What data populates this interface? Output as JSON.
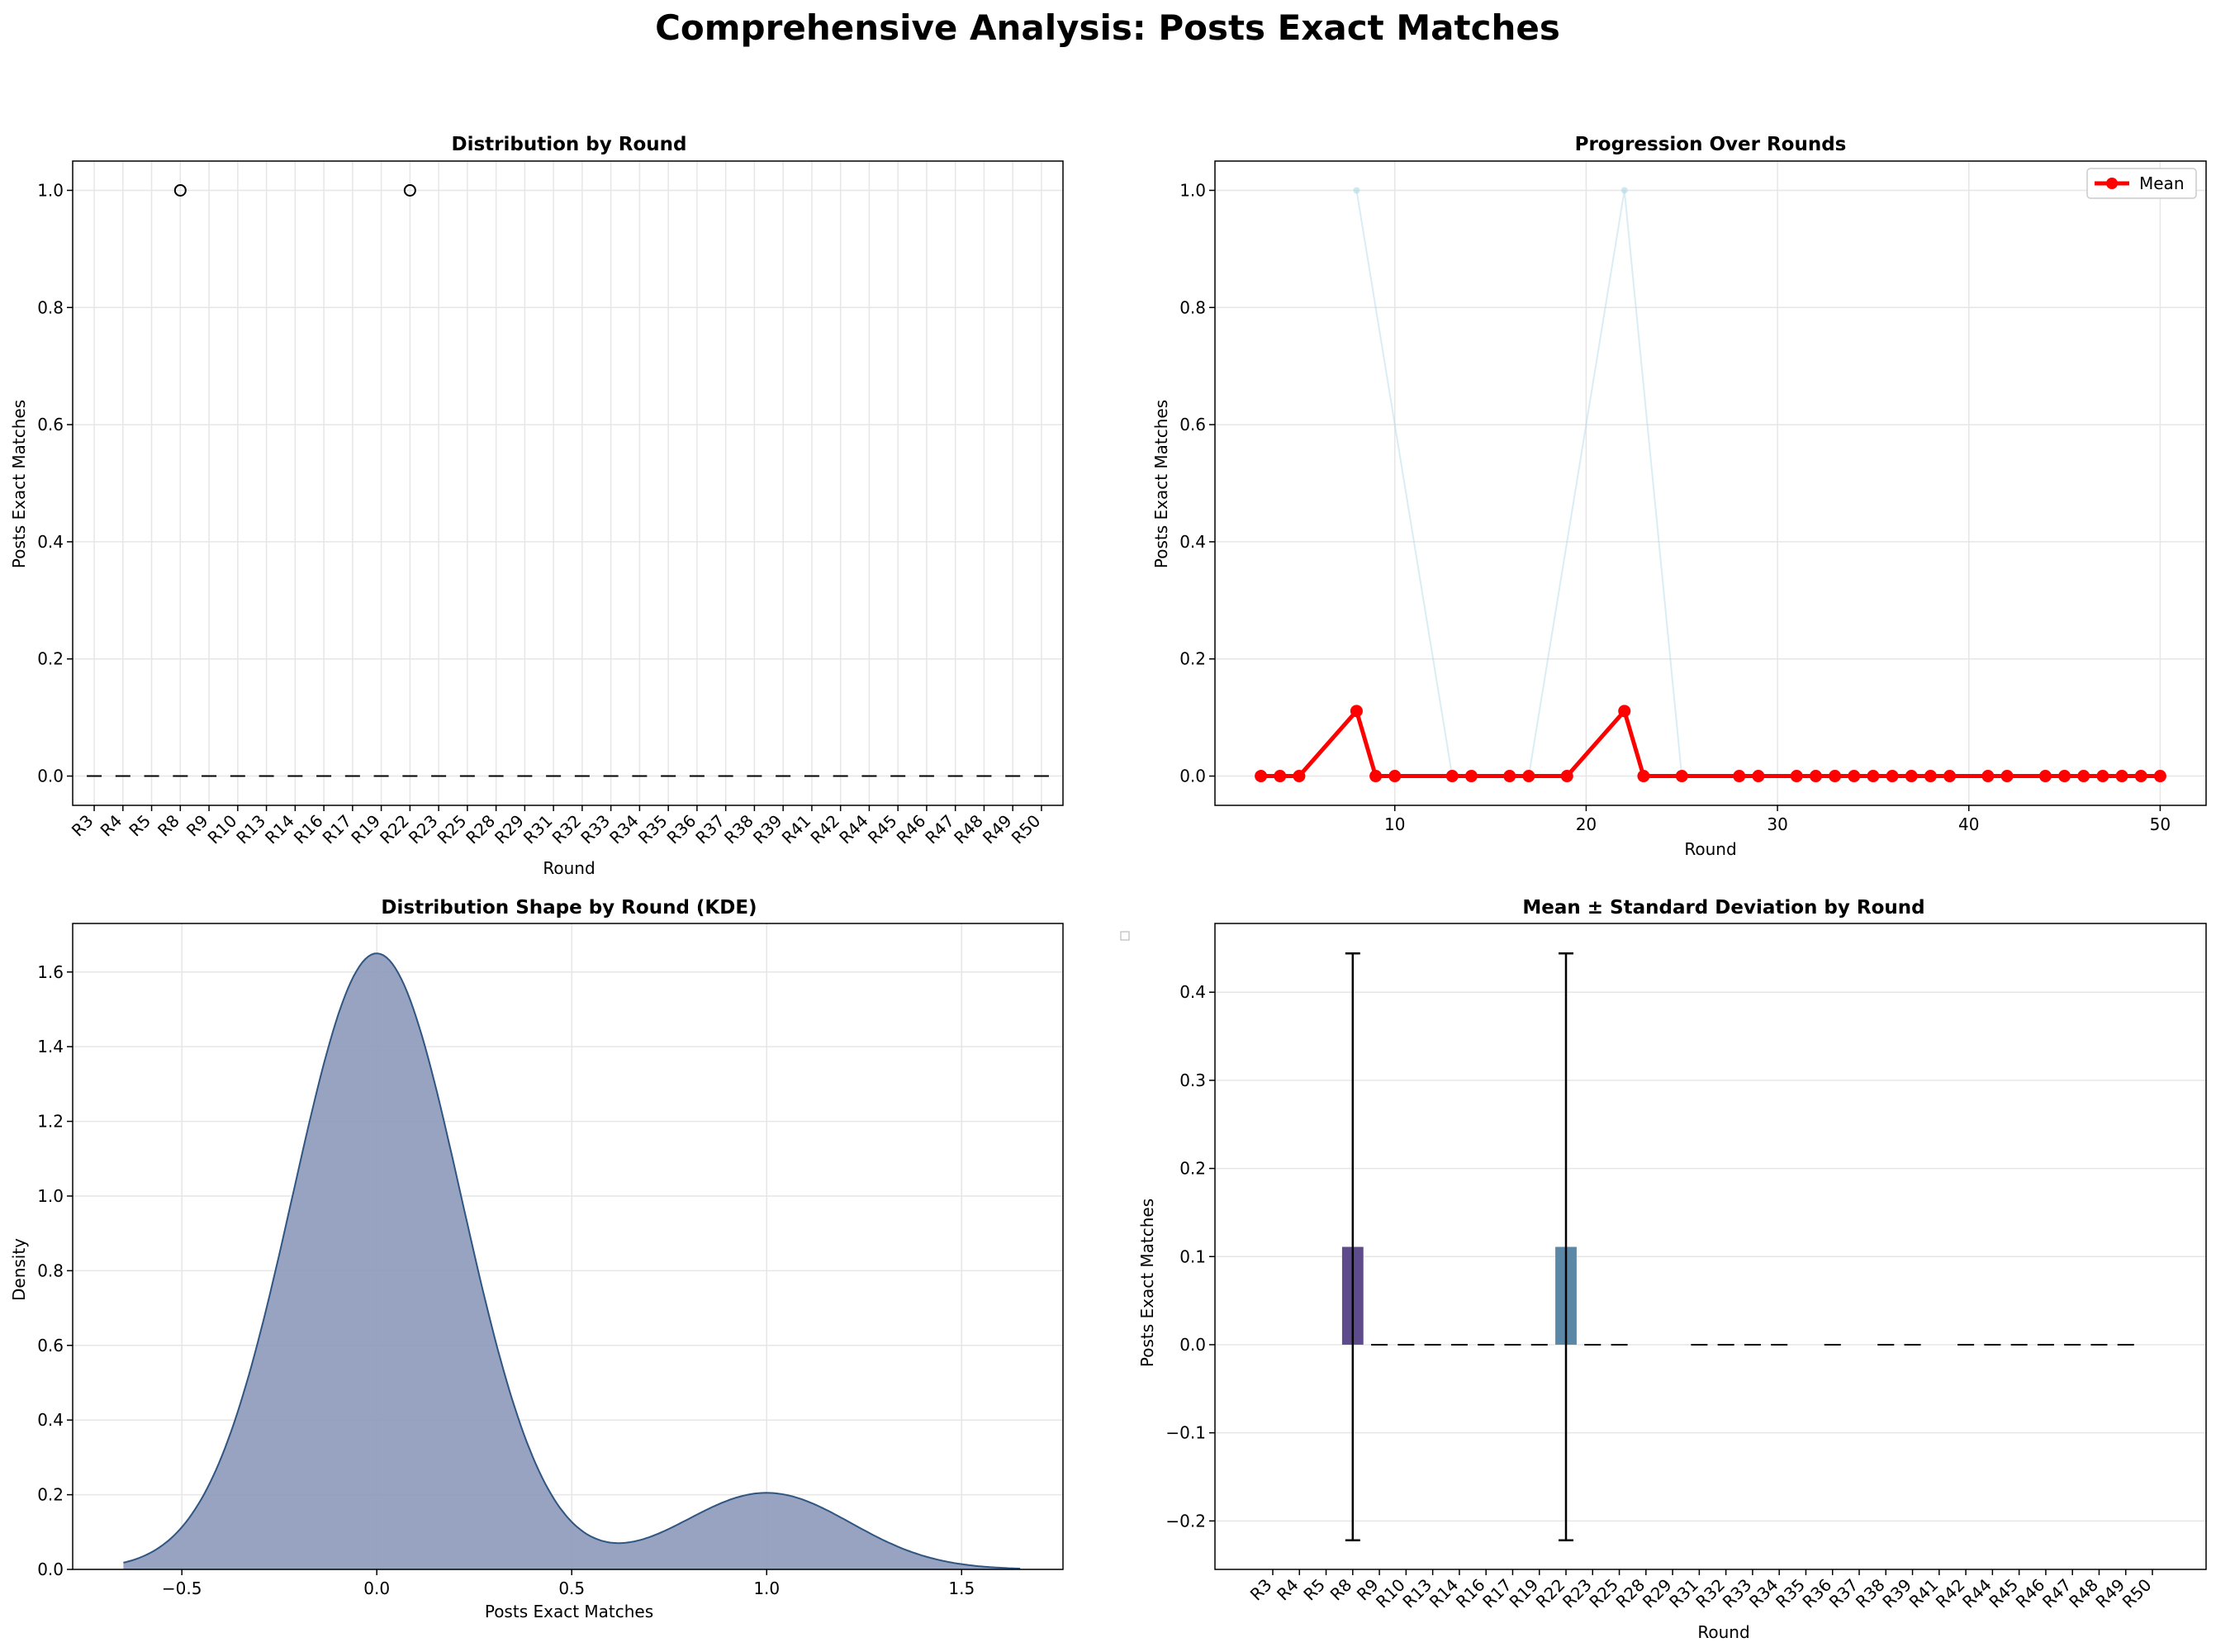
{
  "figure": {
    "title": "Comprehensive Analysis: Posts Exact Matches"
  },
  "rounds": [
    "R3",
    "R4",
    "R5",
    "R8",
    "R9",
    "R10",
    "R13",
    "R14",
    "R16",
    "R17",
    "R19",
    "R22",
    "R23",
    "R25",
    "R28",
    "R29",
    "R31",
    "R32",
    "R33",
    "R34",
    "R35",
    "R36",
    "R37",
    "R38",
    "R39",
    "R41",
    "R42",
    "R44",
    "R45",
    "R46",
    "R47",
    "R48",
    "R49",
    "R50"
  ],
  "chart_data": [
    {
      "type": "box",
      "title": "Distribution by Round",
      "xlabel": "Round",
      "ylabel": "Posts Exact Matches",
      "categories_ref": "rounds",
      "ylim": [
        -0.05,
        1.05
      ],
      "yticks": [
        0.0,
        0.2,
        0.4,
        0.6,
        0.8,
        1.0
      ],
      "ytick_labels": [
        "0.0",
        "0.2",
        "0.4",
        "0.6",
        "0.8",
        "1.0"
      ],
      "median": 0,
      "outliers": [
        {
          "round": "R8",
          "value": 1.0
        },
        {
          "round": "R22",
          "value": 1.0
        }
      ],
      "grid": true
    },
    {
      "type": "line",
      "title": "Progression Over Rounds",
      "xlabel": "Round",
      "ylabel": "Posts Exact Matches",
      "xlim": [
        0.6,
        52.4
      ],
      "ylim": [
        -0.05,
        1.05
      ],
      "xticks": [
        10,
        20,
        30,
        40,
        50
      ],
      "xtick_labels": [
        "10",
        "20",
        "30",
        "40",
        "50"
      ],
      "yticks": [
        0.0,
        0.2,
        0.4,
        0.6,
        0.8,
        1.0
      ],
      "ytick_labels": [
        "0.0",
        "0.2",
        "0.4",
        "0.6",
        "0.8",
        "1.0"
      ],
      "x": [
        3,
        4,
        5,
        8,
        9,
        10,
        13,
        14,
        16,
        17,
        19,
        22,
        23,
        25,
        28,
        29,
        31,
        32,
        33,
        34,
        35,
        36,
        37,
        38,
        39,
        41,
        42,
        44,
        45,
        46,
        47,
        48,
        49,
        50
      ],
      "mean": [
        0,
        0,
        0,
        0.111,
        0,
        0,
        0,
        0,
        0,
        0,
        0,
        0.111,
        0,
        0,
        0,
        0,
        0,
        0,
        0,
        0,
        0,
        0,
        0,
        0,
        0,
        0,
        0,
        0,
        0,
        0,
        0,
        0,
        0,
        0
      ],
      "individual_x": [
        8,
        13,
        17,
        22,
        25
      ],
      "individual_y": [
        1.0,
        0,
        0,
        1.0,
        0
      ],
      "legend": {
        "label": "Mean",
        "position": "upper-right",
        "color": "#ff0000"
      },
      "colors": {
        "mean": "#ff0000",
        "individual": "#add8e6"
      },
      "grid": true
    },
    {
      "type": "area",
      "title": "Distribution Shape by Round (KDE)",
      "xlabel": "Posts Exact Matches",
      "ylabel": "Density",
      "xlim": [
        -0.78,
        1.76
      ],
      "ylim": [
        0,
        1.73
      ],
      "xticks": [
        -0.5,
        0.0,
        0.5,
        1.0,
        1.5
      ],
      "xtick_labels": [
        "−0.5",
        "0.0",
        "0.5",
        "1.0",
        "1.5"
      ],
      "yticks": [
        0.0,
        0.2,
        0.4,
        0.6,
        0.8,
        1.0,
        1.2,
        1.4,
        1.6
      ],
      "ytick_labels": [
        "0.0",
        "0.2",
        "0.4",
        "0.6",
        "0.8",
        "1.0",
        "1.2",
        "1.4",
        "1.6"
      ],
      "x_range": [
        -0.65,
        1.65
      ],
      "modes": [
        {
          "center": 0,
          "peak": 1.65,
          "sd": 0.216
        },
        {
          "center": 1,
          "peak": 0.205,
          "sd": 0.216
        }
      ],
      "colors": {
        "fill": "#8e9bbb",
        "line": "#2f5582"
      },
      "grid": true
    },
    {
      "type": "bar",
      "title": "Mean ± Standard Deviation by Round",
      "xlabel": "Round",
      "ylabel": "Posts Exact Matches",
      "categories_ref": "rounds",
      "ylim": [
        -0.255,
        0.478
      ],
      "yticks": [
        -0.2,
        -0.1,
        0.0,
        0.1,
        0.2,
        0.3,
        0.4
      ],
      "ytick_labels": [
        "−0.2",
        "−0.1",
        "0.0",
        "0.1",
        "0.2",
        "0.3",
        "0.4"
      ],
      "values": [
        0,
        0,
        0,
        0.111,
        0,
        0,
        0,
        0,
        0,
        0,
        0,
        0.111,
        0,
        0,
        0,
        0,
        0,
        0,
        0,
        0,
        0,
        0,
        0,
        0,
        0,
        0,
        0,
        0,
        0,
        0,
        0,
        0,
        0,
        0
      ],
      "errors": {
        "R8": 0.333,
        "R22": 0.333
      },
      "dashes_at": [
        "R9",
        "R10",
        "R13",
        "R14",
        "R16",
        "R17",
        "R19",
        "R23",
        "R25",
        "R31",
        "R32",
        "R33",
        "R34",
        "R36",
        "R38",
        "R39",
        "R42",
        "R44",
        "R45",
        "R46",
        "R47",
        "R48",
        "R49"
      ],
      "bar_colors": {
        "R8": "#5e4b8b",
        "R22": "#5b88a7"
      },
      "grid": true
    }
  ]
}
